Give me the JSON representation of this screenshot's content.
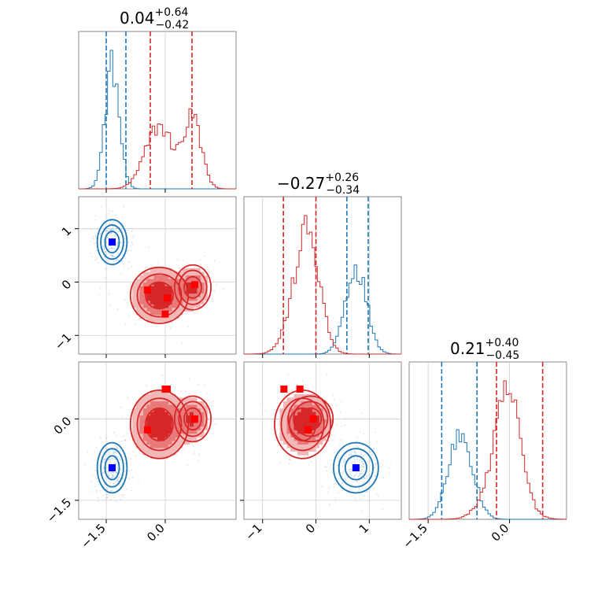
{
  "chart_data": {
    "type": "corner",
    "parameters": [
      {
        "index": 0,
        "title_value": "0.04",
        "title_plus": "+0.64",
        "title_minus": "−0.42",
        "range": [
          -2.2,
          1.8
        ]
      },
      {
        "index": 1,
        "title_value": "−0.27",
        "title_plus": "+0.26",
        "title_minus": "−0.34",
        "range": [
          -1.35,
          1.6
        ]
      },
      {
        "index": 2,
        "title_value": "0.21",
        "title_plus": "+0.40",
        "title_minus": "−0.45",
        "range": [
          -1.85,
          1.05
        ]
      }
    ],
    "tick_labels": {
      "param0": {
        "values": [
          -1.5,
          0.0
        ],
        "labels": [
          "−1.5",
          "0.0"
        ]
      },
      "param1": {
        "values": [
          -1,
          0,
          1
        ],
        "labels": [
          "−1",
          "0",
          "1"
        ]
      },
      "param2": {
        "values": [
          -1.5,
          0.0
        ],
        "labels": [
          "−1.5",
          "0.0"
        ]
      }
    },
    "series": [
      {
        "color": "#1f77b4",
        "marker_color": "#0000ff",
        "mean": [
          -1.35,
          0.75,
          -0.9
        ],
        "sigma": [
          0.18,
          0.2,
          0.22
        ],
        "quantile_lines": {
          "param0": [
            -1.5,
            -1.0
          ],
          "param1": [
            0.58,
            0.98
          ],
          "param2": [
            -1.25,
            -0.6
          ]
        },
        "components": [
          {
            "center": [
              -1.35,
              0.75,
              -0.9
            ],
            "spread": [
              0.18,
              0.2,
              0.22
            ],
            "weight": 1.0
          }
        ]
      },
      {
        "color": "#d62728",
        "marker_color": "#ff0000",
        "markers": [
          {
            "values": [
              -0.45,
              -0.15,
              -0.2
            ]
          },
          {
            "values": [
              0.05,
              -0.3,
              0.55
            ]
          },
          {
            "values": [
              0.0,
              -0.6,
              0.55
            ]
          },
          {
            "values": [
              0.75,
              -0.05,
              0.0
            ]
          }
        ],
        "quantile_lines": {
          "param0": [
            -0.38,
            0.68
          ],
          "param1": [
            -0.61,
            0.0
          ],
          "param2": [
            -0.24,
            0.61
          ]
        },
        "components": [
          {
            "center": [
              -0.15,
              -0.25,
              -0.1
            ],
            "spread": [
              0.35,
              0.25,
              0.3
            ],
            "weight": 1.0
          },
          {
            "center": [
              0.7,
              -0.1,
              0.0
            ],
            "spread": [
              0.22,
              0.2,
              0.2
            ],
            "weight": 0.7
          }
        ]
      }
    ],
    "histogram_peaks": {
      "param0": 1.0,
      "param1": 1.0,
      "param2": 1.0
    },
    "grid": true,
    "xlabel": "",
    "ylabel": ""
  }
}
